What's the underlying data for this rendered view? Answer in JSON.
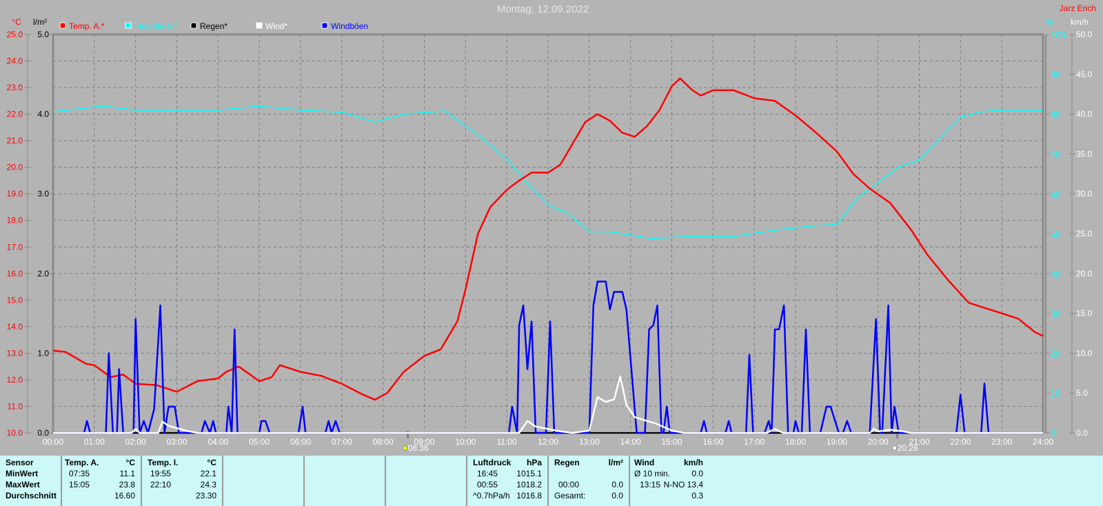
{
  "header": {
    "title": "Montag, 12.09.2022",
    "author": "Jarz Erich"
  },
  "colors": {
    "temp": "#ff0000",
    "humidity": "#00ffff",
    "rain": "#000000",
    "wind": "#ffffff",
    "gust": "#0000ff",
    "background": "#b4b4b4",
    "panel": "#ccf8f8"
  },
  "chart_data": {
    "type": "line",
    "title": "Montag, 12.09.2022",
    "grid": true,
    "legend_placement": "top-left",
    "legend": [
      {
        "label": "Temp. A.*",
        "color": "#ff0000"
      },
      {
        "label": "Feuchte A.*",
        "color": "#00ffff"
      },
      {
        "label": "Regen*",
        "color": "#000000"
      },
      {
        "label": "Wind*",
        "color": "#ffffff"
      },
      {
        "label": "Windböen",
        "color": "#0000ff"
      }
    ],
    "axes": {
      "x": {
        "ticks": [
          "00:00",
          "01:00",
          "02:00",
          "03:00",
          "04:00",
          "05:00",
          "06:00",
          "07:00",
          "08:00",
          "09:00",
          "10:00",
          "11:00",
          "12:00",
          "13:00",
          "14:00",
          "15:00",
          "16:00",
          "17:00",
          "18:00",
          "19:00",
          "20:00",
          "21:00",
          "22:00",
          "23:00",
          "24:00"
        ],
        "range_hours": [
          0,
          24
        ]
      },
      "y_temp": {
        "unit": "°C",
        "range": [
          10,
          25
        ],
        "ticks": [
          "10.0",
          "11.0",
          "12.0",
          "13.0",
          "14.0",
          "15.0",
          "16.0",
          "17.0",
          "18.0",
          "19.0",
          "20.0",
          "21.0",
          "22.0",
          "23.0",
          "24.0",
          "25.0"
        ]
      },
      "y_rain": {
        "unit": "l/m²",
        "range": [
          0,
          5
        ],
        "ticks": [
          "0.0",
          "1.0",
          "2.0",
          "3.0",
          "4.0",
          "5.0"
        ]
      },
      "y_humidity": {
        "unit": "%",
        "range": [
          0,
          100
        ],
        "ticks": [
          "0",
          "10",
          "20",
          "30",
          "40",
          "50",
          "60",
          "70",
          "80",
          "90",
          "100"
        ]
      },
      "y_wind": {
        "unit": "km/h",
        "range": [
          0,
          50
        ],
        "ticks": [
          "0.0",
          "5.0",
          "10.0",
          "15.0",
          "20.0",
          "25.0",
          "30.0",
          "35.0",
          "40.0",
          "45.0",
          "50.0"
        ]
      }
    },
    "sunrise": "08:36",
    "sunset": "20:28",
    "series": [
      {
        "name": "Temp. A.*",
        "axis": "y_temp",
        "x_hours": [
          0,
          0.3,
          0.8,
          1.0,
          1.4,
          1.7,
          2.0,
          2.5,
          3.0,
          3.5,
          4.0,
          4.2,
          4.5,
          5.0,
          5.3,
          5.5,
          6.0,
          6.5,
          7.0,
          7.5,
          7.8,
          8.1,
          8.5,
          9.0,
          9.4,
          9.8,
          10.0,
          10.3,
          10.6,
          11.0,
          11.3,
          11.6,
          12.0,
          12.3,
          12.6,
          12.9,
          13.2,
          13.5,
          13.8,
          14.1,
          14.4,
          14.7,
          15.0,
          15.2,
          15.5,
          15.7,
          16.0,
          16.5,
          17.0,
          17.5,
          18.0,
          18.5,
          19.0,
          19.4,
          19.8,
          20.3,
          20.8,
          21.2,
          21.7,
          22.2,
          22.6,
          23.0,
          23.4,
          23.8,
          24.0
        ],
        "values": [
          13.1,
          13.05,
          12.6,
          12.55,
          12.1,
          12.2,
          11.85,
          11.8,
          11.55,
          11.95,
          12.05,
          12.3,
          12.5,
          11.95,
          12.1,
          12.55,
          12.3,
          12.15,
          11.85,
          11.45,
          11.25,
          11.5,
          12.3,
          12.9,
          13.15,
          14.2,
          15.4,
          17.5,
          18.5,
          19.15,
          19.5,
          19.8,
          19.8,
          20.1,
          20.9,
          21.7,
          22.0,
          21.75,
          21.3,
          21.15,
          21.55,
          22.15,
          23.05,
          23.35,
          22.9,
          22.7,
          22.9,
          22.9,
          22.6,
          22.5,
          21.95,
          21.3,
          20.6,
          19.75,
          19.2,
          18.65,
          17.65,
          16.7,
          15.75,
          14.9,
          14.7,
          14.5,
          14.3,
          13.8,
          13.65
        ]
      },
      {
        "name": "Feuchte A.*",
        "axis": "y_humidity",
        "x_hours": [
          0,
          1.2,
          2.0,
          3.0,
          4.0,
          5.0,
          6.0,
          7.0,
          7.8,
          8.5,
          9.5,
          10.3,
          11.0,
          11.5,
          12.0,
          12.5,
          13.0,
          13.5,
          14.5,
          15.5,
          16.5,
          17.5,
          18.5,
          19.0,
          19.5,
          20.5,
          21.0,
          21.5,
          22.0,
          22.5,
          23.0,
          24.0
        ],
        "values": [
          80.6,
          82,
          81,
          81,
          81,
          82,
          81,
          80.5,
          78,
          80,
          80.8,
          74.8,
          68.7,
          62.5,
          57.2,
          55,
          50.5,
          50.5,
          48.8,
          49.3,
          49.3,
          50.9,
          52,
          52.3,
          59,
          66.7,
          68.5,
          74,
          79.2,
          80.6,
          81,
          81
        ]
      },
      {
        "name": "Regen*",
        "axis": "y_rain",
        "x_hours": [
          0,
          24
        ],
        "values": [
          0,
          0
        ]
      },
      {
        "name": "Wind*",
        "axis": "y_wind",
        "x_hours": [
          0,
          1.9,
          2.0,
          2.1,
          2.55,
          2.65,
          2.8,
          3.2,
          3.5,
          11.3,
          11.5,
          11.7,
          12.0,
          12.3,
          12.6,
          13.0,
          13.2,
          13.4,
          13.6,
          13.75,
          13.9,
          14.1,
          14.4,
          14.6,
          15.0,
          15.3,
          17.3,
          17.5,
          17.7,
          19.8,
          19.9,
          20.0,
          20.3,
          20.6,
          20.8,
          24.0
        ],
        "values": [
          0,
          0,
          0.5,
          0,
          0,
          1.4,
          0.9,
          0.3,
          0,
          0,
          1.5,
          0.8,
          0.5,
          0.2,
          0,
          0.3,
          4.5,
          3.9,
          4.2,
          7.1,
          3.5,
          2.0,
          1.5,
          1.2,
          0.3,
          0,
          0,
          0.5,
          0,
          0,
          0.5,
          0.2,
          0.4,
          0.2,
          0,
          0
        ]
      },
      {
        "name": "Windböen",
        "axis": "y_wind",
        "x_hours": [
          0,
          0.75,
          0.82,
          0.9,
          1.28,
          1.35,
          1.45,
          1.55,
          1.6,
          1.7,
          1.95,
          2.0,
          2.1,
          2.2,
          2.3,
          2.45,
          2.6,
          2.7,
          2.8,
          2.95,
          3.05,
          3.6,
          3.68,
          3.8,
          3.88,
          3.95,
          4.2,
          4.25,
          4.33,
          4.4,
          4.47,
          5.0,
          5.05,
          5.15,
          5.25,
          5.95,
          6.05,
          6.12,
          6.6,
          6.68,
          6.75,
          6.85,
          6.95,
          11.05,
          11.13,
          11.25,
          11.3,
          11.4,
          11.5,
          11.6,
          11.7,
          11.95,
          12.05,
          12.15,
          13.0,
          13.1,
          13.2,
          13.4,
          13.5,
          13.6,
          13.8,
          13.9,
          14.15,
          14.35,
          14.45,
          14.55,
          14.65,
          14.75,
          14.8,
          14.88,
          14.95,
          15.7,
          15.78,
          15.85,
          16.3,
          16.38,
          16.45,
          16.8,
          16.88,
          16.97,
          17.25,
          17.35,
          17.42,
          17.5,
          17.6,
          17.72,
          17.82,
          17.95,
          18.0,
          18.08,
          18.15,
          18.25,
          18.35,
          18.6,
          18.75,
          18.85,
          19.05,
          19.15,
          19.25,
          19.35,
          19.8,
          19.95,
          20.05,
          20.1,
          20.25,
          20.33,
          20.4,
          20.5,
          21.9,
          22.0,
          22.1,
          22.5,
          22.58,
          22.68,
          24.0
        ],
        "values": [
          0,
          0,
          1.5,
          0,
          0,
          10,
          0,
          0,
          8,
          0,
          0,
          14.3,
          0,
          1.5,
          0,
          3,
          16,
          0,
          3.3,
          3.3,
          0,
          0,
          1.5,
          0,
          1.5,
          0,
          0,
          3.3,
          0,
          13,
          0,
          0,
          1.5,
          1.5,
          0,
          0,
          3.3,
          0,
          0,
          1.5,
          0,
          1.5,
          0,
          0,
          3.3,
          0,
          13.5,
          16,
          8,
          14,
          0,
          0,
          14,
          0,
          0,
          16,
          19,
          19,
          15.5,
          17.7,
          17.7,
          15.5,
          0,
          0,
          13,
          13.5,
          16,
          0,
          0,
          3.3,
          0,
          0,
          1.5,
          0,
          0,
          1.5,
          0,
          0,
          9.8,
          0,
          0,
          1.5,
          0,
          13,
          13,
          16,
          0,
          0,
          1.5,
          0,
          0,
          13,
          0,
          0,
          3.3,
          3.3,
          0,
          0,
          1.5,
          0,
          0,
          14.3,
          0,
          0,
          16,
          0,
          3.3,
          0,
          0,
          4.8,
          0,
          0,
          6.2,
          0,
          0
        ]
      }
    ]
  },
  "stats": {
    "sensor": {
      "labels": [
        "Sensor",
        "MinWert",
        "MaxWert",
        "Durchschnitt"
      ]
    },
    "temp_a": {
      "name": "Temp. A.",
      "unit": "°C",
      "min_time": "07:35",
      "min": "11.1",
      "max_time": "15:05",
      "max": "23.8",
      "avg": "16.60"
    },
    "temp_i": {
      "name": "Temp. I.",
      "unit": "°C",
      "min_time": "19:55",
      "min": "22.1",
      "max_time": "22:10",
      "max": "24.3",
      "avg": "23.30"
    },
    "pressure": {
      "name": "Luftdruck",
      "unit": "hPa",
      "min_time": "16:45",
      "min": "1015.1",
      "max_time": "00:55",
      "max": "1018.2",
      "trend": "^0.7hPa/h",
      "avg": "1016.8"
    },
    "rain": {
      "name": "Regen",
      "unit": "l/m²",
      "max_time": "00:00",
      "max": "0.0",
      "total_label": "Gesamt:",
      "total": "0.0"
    },
    "wind": {
      "name": "Wind",
      "unit": "km/h",
      "avg_label": "Ø 10 min.",
      "avg": "0.0",
      "max_time": "13:15",
      "max": "N-NO 13.4",
      "daily_avg": "0.3"
    }
  }
}
